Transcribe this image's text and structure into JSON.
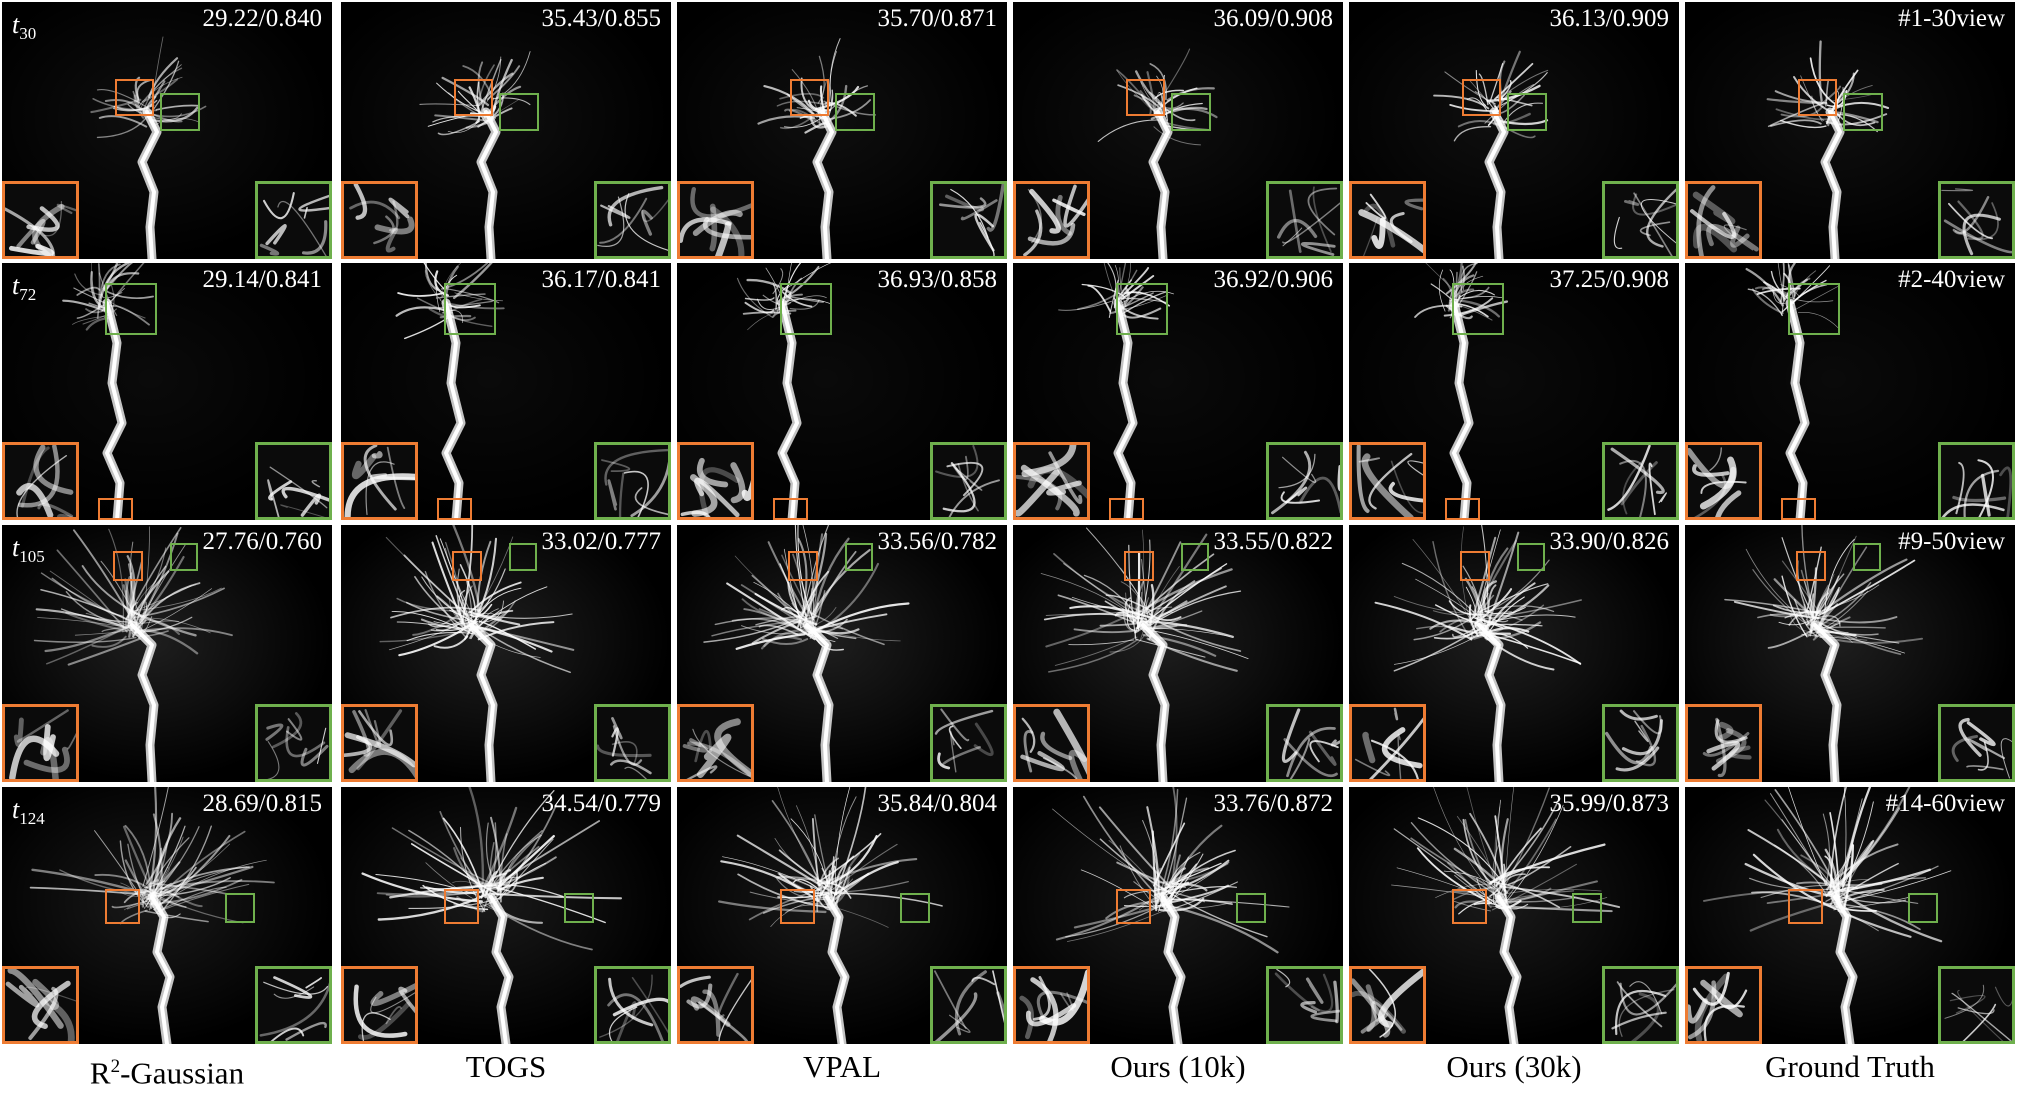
{
  "colors": {
    "orange": "#ee7c33",
    "green": "#6fb04d",
    "background": "#000000"
  },
  "columns": [
    {
      "caption_prefix": "R",
      "caption_sup": "2",
      "caption_suffix": "-Gaussian"
    },
    {
      "caption_prefix": "TOGS",
      "caption_sup": "",
      "caption_suffix": ""
    },
    {
      "caption_prefix": "VPAL",
      "caption_sup": "",
      "caption_suffix": ""
    },
    {
      "caption_prefix": "Ours (10k)",
      "caption_sup": "",
      "caption_suffix": ""
    },
    {
      "caption_prefix": "Ours (30k)",
      "caption_sup": "",
      "caption_suffix": ""
    },
    {
      "caption_prefix": "Ground Truth",
      "caption_sup": "",
      "caption_suffix": ""
    }
  ],
  "rows": [
    {
      "time_base": "t",
      "time_sub": "30",
      "metrics": [
        "29.22/0.840",
        "35.43/0.855",
        "35.70/0.871",
        "36.09/0.908",
        "36.13/0.909",
        "#1-30view"
      ]
    },
    {
      "time_base": "t",
      "time_sub": "72",
      "metrics": [
        "29.14/0.841",
        "36.17/0.841",
        "36.93/0.858",
        "36.92/0.906",
        "37.25/0.908",
        "#2-40view"
      ]
    },
    {
      "time_base": "t",
      "time_sub": "105",
      "metrics": [
        "27.76/0.760",
        "33.02/0.777",
        "33.56/0.782",
        "33.55/0.822",
        "33.90/0.826",
        "#9-50view"
      ]
    },
    {
      "time_base": "t",
      "time_sub": "124",
      "metrics": [
        "28.69/0.815",
        "34.54/0.779",
        "35.84/0.804",
        "33.76/0.872",
        "35.99/0.873",
        "#14-60view"
      ]
    }
  ]
}
